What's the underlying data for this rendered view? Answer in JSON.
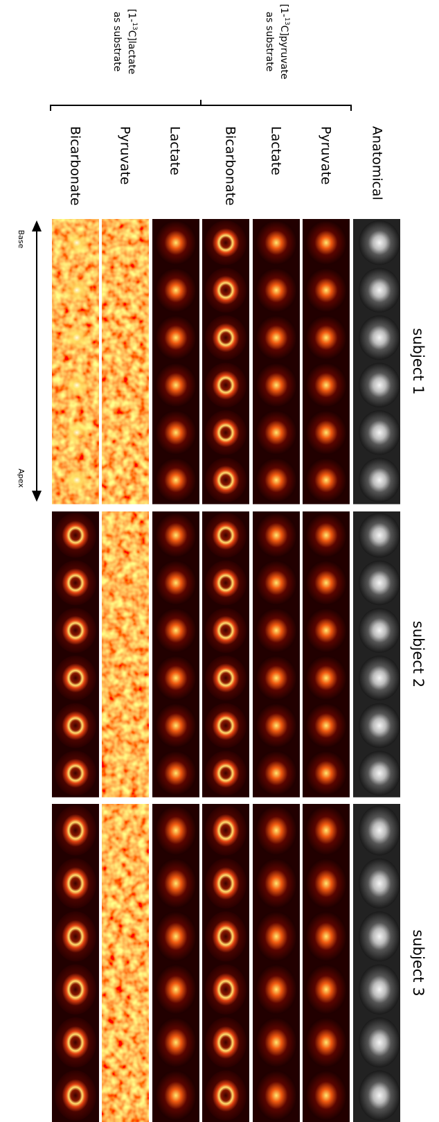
{
  "group_labels": [
    {
      "prefix": "[1-",
      "sup": "13",
      "rest": "C]lactate",
      "line2": "as substrate"
    },
    {
      "prefix": "[1-",
      "sup": "13",
      "rest": "C]pyruvate",
      "line2": "as substrate"
    }
  ],
  "column_labels": [
    "Bicarbonate",
    "Pyruvate",
    "Lactate",
    "Bicarbonate",
    "Lactate",
    "Pyruvate",
    "Anatomical"
  ],
  "subjects": [
    "subject 1",
    "subject 2",
    "subject 3"
  ],
  "axis": {
    "start": "Base",
    "end": "Apex"
  }
}
